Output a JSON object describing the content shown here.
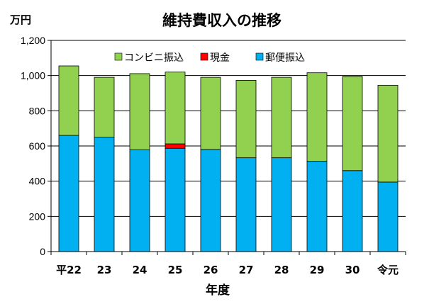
{
  "chart_data": {
    "type": "bar",
    "stacked": true,
    "title": "維持費収入の推移",
    "unit_label": "万円",
    "xlabel": "年度",
    "ylabel": "",
    "ylim": [
      0,
      1200
    ],
    "yticks": [
      0,
      200,
      400,
      600,
      800,
      1000,
      1200
    ],
    "ytick_labels": [
      "0",
      "200",
      "400",
      "600",
      "800",
      "1,000",
      "1,200"
    ],
    "grid": true,
    "legend_position": "top",
    "categories": [
      "平22",
      "23",
      "24",
      "25",
      "26",
      "27",
      "28",
      "29",
      "30",
      "令元"
    ],
    "series": [
      {
        "name": "郵便振込",
        "color": "#00b0f0",
        "values": [
          660,
          650,
          578,
          587,
          580,
          533,
          533,
          513,
          460,
          395
        ]
      },
      {
        "name": "現金",
        "color": "#ff0000",
        "values": [
          0,
          0,
          0,
          25,
          0,
          0,
          0,
          0,
          0,
          0
        ]
      },
      {
        "name": "コンビニ振込",
        "color": "#92d050",
        "values": [
          395,
          340,
          433,
          408,
          410,
          440,
          457,
          503,
          535,
          550
        ]
      }
    ],
    "legend_order": [
      "コンビニ振込",
      "現金",
      "郵便振込"
    ]
  }
}
